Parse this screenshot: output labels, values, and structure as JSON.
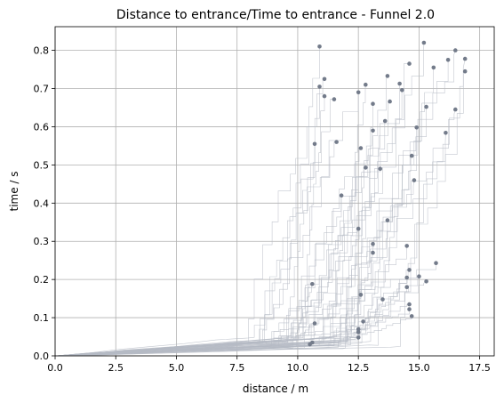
{
  "chart_data": {
    "type": "scatter",
    "title": "Distance to entrance/Time to entrance - Funnel 2.0",
    "xlabel": "distance / m",
    "ylabel": "time / s",
    "xlim": [
      0,
      18.1
    ],
    "ylim": [
      0,
      0.862
    ],
    "xticks": [
      "0.0",
      "2.5",
      "5.0",
      "7.5",
      "10.0",
      "12.5",
      "15.0",
      "17.5"
    ],
    "xtick_values": [
      0,
      2.5,
      5,
      7.5,
      10,
      12.5,
      15,
      17.5
    ],
    "yticks": [
      "0.0",
      "0.1",
      "0.2",
      "0.3",
      "0.4",
      "0.5",
      "0.6",
      "0.7",
      "0.8"
    ],
    "ytick_values": [
      0,
      0.1,
      0.2,
      0.3,
      0.4,
      0.5,
      0.6,
      0.7,
      0.8
    ],
    "grid": true,
    "colors": {
      "point": "#737b8a",
      "trajectory": "#b5bac4",
      "grid": "#b0b0b0"
    },
    "x": [
      10.9,
      15.2,
      16.5,
      11.1,
      14.6,
      16.2,
      15.6,
      16.9,
      16.9,
      12.8,
      13.7,
      10.9,
      14.2,
      14.3,
      12.5,
      11.1,
      11.5,
      13.8,
      13.1,
      15.3,
      16.5,
      13.6,
      14.9,
      13.1,
      16.1,
      10.7,
      11.6,
      12.6,
      14.7,
      12.8,
      13.4,
      14.8,
      11.8,
      13.7,
      12.5,
      13.1,
      14.5,
      13.1,
      15.7,
      14.6,
      14.5,
      15.0,
      15.3,
      10.6,
      14.5,
      12.6,
      13.5,
      14.6,
      10.7,
      12.7,
      14.6,
      14.7,
      12.5,
      10.6,
      12.5,
      12.5,
      10.5
    ],
    "y": [
      0.81,
      0.82,
      0.8,
      0.725,
      0.765,
      0.775,
      0.755,
      0.778,
      0.745,
      0.71,
      0.733,
      0.705,
      0.713,
      0.696,
      0.69,
      0.68,
      0.672,
      0.666,
      0.66,
      0.652,
      0.645,
      0.615,
      0.598,
      0.59,
      0.584,
      0.555,
      0.56,
      0.544,
      0.524,
      0.493,
      0.49,
      0.46,
      0.42,
      0.355,
      0.333,
      0.293,
      0.288,
      0.27,
      0.243,
      0.225,
      0.205,
      0.208,
      0.195,
      0.188,
      0.18,
      0.16,
      0.148,
      0.135,
      0.085,
      0.09,
      0.122,
      0.104,
      0.07,
      0.035,
      0.062,
      0.048,
      0.03
    ]
  }
}
